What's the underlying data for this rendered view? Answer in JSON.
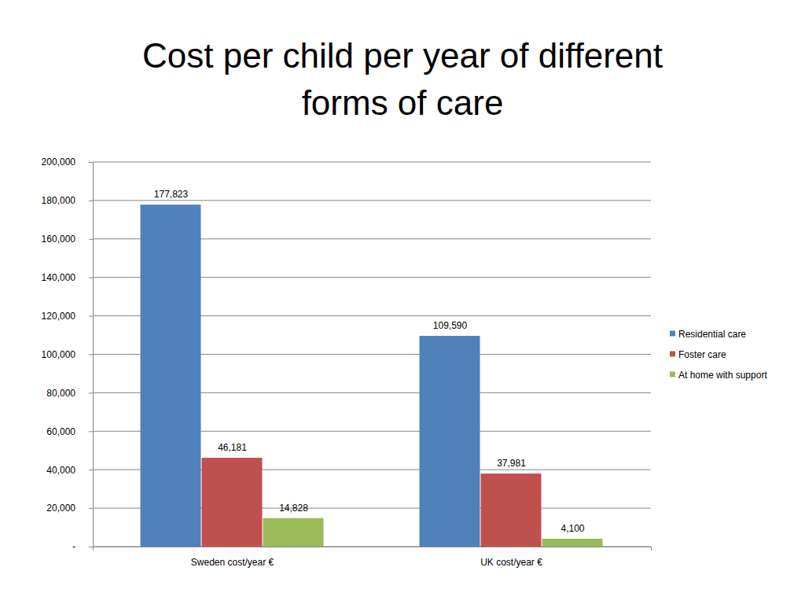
{
  "chart_data": {
    "type": "bar",
    "title": "Cost per child per year of different forms of care",
    "categories": [
      "Sweden cost/year €",
      "UK cost/year €"
    ],
    "series": [
      {
        "name": "Residential care",
        "color": "#4f81bd",
        "values": [
          177823,
          109590
        ],
        "value_labels": [
          "177,823",
          "109,590"
        ]
      },
      {
        "name": "Foster care",
        "color": "#c0504d",
        "values": [
          46181,
          37981
        ],
        "value_labels": [
          "46,181",
          "37,981"
        ]
      },
      {
        "name": "At home with support",
        "color": "#9bbb59",
        "values": [
          14828,
          4100
        ],
        "value_labels": [
          "14,828",
          "4,100"
        ]
      }
    ],
    "ylim": [
      0,
      200000
    ],
    "yticks": [
      {
        "value": 0,
        "label": "-"
      },
      {
        "value": 20000,
        "label": "20,000"
      },
      {
        "value": 40000,
        "label": "40,000"
      },
      {
        "value": 60000,
        "label": "60,000"
      },
      {
        "value": 80000,
        "label": "80,000"
      },
      {
        "value": 100000,
        "label": "100,000"
      },
      {
        "value": 120000,
        "label": "120,000"
      },
      {
        "value": 140000,
        "label": "140,000"
      },
      {
        "value": 160000,
        "label": "160,000"
      },
      {
        "value": 180000,
        "label": "180,000"
      },
      {
        "value": 200000,
        "label": "200,000"
      }
    ],
    "grid": true,
    "legend": "right",
    "data_labels": true
  }
}
